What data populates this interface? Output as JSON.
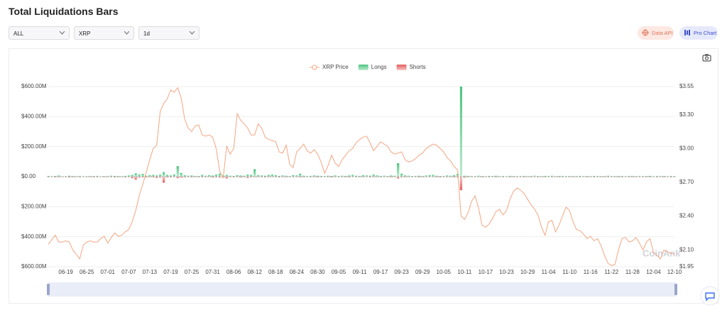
{
  "header": {
    "title": "Total Liquidations Bars"
  },
  "controls": {
    "exchange": "ALL",
    "coin": "XRP",
    "interval": "1d",
    "data_api": "Data API",
    "pro_chart": "Pro Chart"
  },
  "watermark": "CoinAnk",
  "chart_data": {
    "type": "bar",
    "categories": [
      null,
      null,
      null,
      null,
      null,
      "06-19",
      null,
      null,
      null,
      null,
      null,
      "06-25",
      null,
      null,
      null,
      null,
      null,
      "07-01",
      null,
      null,
      null,
      null,
      null,
      "07-07",
      null,
      null,
      null,
      null,
      null,
      "07-13",
      null,
      null,
      null,
      null,
      null,
      "07-19",
      null,
      null,
      null,
      null,
      null,
      "07-25",
      null,
      null,
      null,
      null,
      null,
      "07-31",
      null,
      null,
      null,
      null,
      null,
      "08-06",
      null,
      null,
      null,
      null,
      null,
      "08-12",
      null,
      null,
      null,
      null,
      null,
      "08-18",
      null,
      null,
      null,
      null,
      null,
      "08-24",
      null,
      null,
      null,
      null,
      null,
      "08-30",
      null,
      null,
      null,
      null,
      null,
      "09-05",
      null,
      null,
      null,
      null,
      null,
      "09-11",
      null,
      null,
      null,
      null,
      null,
      "09-17",
      null,
      null,
      null,
      null,
      null,
      "09-23",
      null,
      null,
      null,
      null,
      null,
      "09-29",
      null,
      null,
      null,
      null,
      null,
      "10-05",
      null,
      null,
      null,
      null,
      null,
      "10-11",
      null,
      null,
      null,
      null,
      null,
      "10-17",
      null,
      null,
      null,
      null,
      null,
      "10-23",
      null,
      null,
      null,
      null,
      null,
      "10-29",
      null,
      null,
      null,
      null,
      null,
      "11-04",
      null,
      null,
      null,
      null,
      null,
      "11-10",
      null,
      null,
      null,
      null,
      null,
      "11-16",
      null,
      null,
      null,
      null,
      null,
      "11-22",
      null,
      null,
      null,
      null,
      null,
      "11-28",
      null,
      null,
      null,
      null,
      null,
      "12-04",
      null,
      null,
      null,
      null,
      null,
      "12-10"
    ],
    "series": [
      {
        "name": "XRP Price",
        "type": "line",
        "axis": "y2",
        "color": "#f4a582",
        "values": [
          2.15,
          2.19,
          2.23,
          2.17,
          2.17,
          2.18,
          2.17,
          2.1,
          2.06,
          2.02,
          2.14,
          2.17,
          2.18,
          2.17,
          2.17,
          2.2,
          2.22,
          2.16,
          2.21,
          2.25,
          2.22,
          2.23,
          2.26,
          2.28,
          2.35,
          2.45,
          2.58,
          2.68,
          2.79,
          2.9,
          3.0,
          3.03,
          3.33,
          3.4,
          3.44,
          3.52,
          3.5,
          3.54,
          3.45,
          3.26,
          3.18,
          3.15,
          3.2,
          3.21,
          3.12,
          3.11,
          3.12,
          3.1,
          3.0,
          2.8,
          2.74,
          3.02,
          2.95,
          3.0,
          3.31,
          3.25,
          3.22,
          3.18,
          3.12,
          3.12,
          3.22,
          3.18,
          3.1,
          3.08,
          3.07,
          3.06,
          2.97,
          2.96,
          3.03,
          2.86,
          2.83,
          2.97,
          3.0,
          3.04,
          2.98,
          2.96,
          2.99,
          2.95,
          2.88,
          2.78,
          2.85,
          2.94,
          2.87,
          2.84,
          2.9,
          2.94,
          2.98,
          3.0,
          3.05,
          3.08,
          3.1,
          3.11,
          3.05,
          2.98,
          3.02,
          3.06,
          3.04,
          3.02,
          2.97,
          2.95,
          2.96,
          2.97,
          2.9,
          2.88,
          2.89,
          2.91,
          2.94,
          2.96,
          3.0,
          3.02,
          3.04,
          3.03,
          3.0,
          2.97,
          2.92,
          2.89,
          2.84,
          2.81,
          2.4,
          2.37,
          2.43,
          2.53,
          2.58,
          2.47,
          2.32,
          2.3,
          2.33,
          2.38,
          2.44,
          2.46,
          2.41,
          2.45,
          2.55,
          2.62,
          2.65,
          2.63,
          2.6,
          2.55,
          2.5,
          2.46,
          2.41,
          2.3,
          2.23,
          2.35,
          2.36,
          2.26,
          2.32,
          2.4,
          2.48,
          2.45,
          2.35,
          2.28,
          2.27,
          2.24,
          2.2,
          2.22,
          2.18,
          2.2,
          2.14,
          2.05,
          1.98,
          1.96,
          1.97,
          2.1,
          2.2,
          2.21,
          2.17,
          2.18,
          2.21,
          2.16,
          2.1,
          2.17,
          2.2,
          2.08,
          2.05,
          2.02,
          2.1,
          2.08,
          2.07,
          2.06
        ]
      },
      {
        "name": "Longs",
        "type": "bar",
        "color": "#4cc47f",
        "values": [
          5,
          3,
          4,
          8,
          2,
          3,
          6,
          4,
          3,
          5,
          3,
          2,
          4,
          3,
          5,
          2,
          3,
          4,
          6,
          5,
          4,
          3,
          5,
          8,
          12,
          22,
          15,
          18,
          6,
          10,
          12,
          8,
          14,
          30,
          12,
          8,
          15,
          70,
          25,
          10,
          6,
          8,
          5,
          4,
          12,
          6,
          10,
          8,
          14,
          20,
          8,
          12,
          6,
          5,
          10,
          8,
          6,
          14,
          12,
          50,
          10,
          8,
          6,
          12,
          14,
          10,
          5,
          8,
          6,
          4,
          10,
          8,
          20,
          6,
          4,
          5,
          8,
          6,
          5,
          4,
          6,
          5,
          8,
          4,
          6,
          5,
          8,
          12,
          6,
          5,
          10,
          8,
          6,
          14,
          8,
          5,
          6,
          4,
          8,
          6,
          90,
          20,
          8,
          6,
          4,
          5,
          6,
          4,
          8,
          10,
          12,
          6,
          4,
          5,
          8,
          6,
          10,
          18,
          600,
          6,
          5,
          4,
          3,
          6,
          4,
          3,
          5,
          4,
          6,
          3,
          4,
          3,
          5,
          4,
          3,
          4,
          5,
          3,
          4,
          6,
          4,
          3,
          5,
          4,
          6,
          3,
          4,
          5,
          3,
          4,
          3,
          4,
          5,
          3,
          4,
          3,
          5,
          4,
          3,
          4,
          6,
          4,
          3,
          5,
          4,
          3,
          4,
          5,
          3,
          4,
          3,
          4,
          5,
          3,
          4,
          3,
          4,
          3,
          5,
          4
        ]
      },
      {
        "name": "Shorts",
        "type": "bar",
        "color": "#e35d5d",
        "values": [
          -3,
          -2,
          -4,
          -3,
          -2,
          -3,
          -5,
          -3,
          -2,
          -3,
          -2,
          -3,
          -2,
          -4,
          -3,
          -2,
          -3,
          -2,
          -3,
          -4,
          -3,
          -2,
          -4,
          -3,
          -10,
          -20,
          -6,
          -5,
          -4,
          -3,
          -5,
          -8,
          -6,
          -40,
          -5,
          -4,
          -3,
          -10,
          -6,
          -4,
          -3,
          -4,
          -2,
          -3,
          -4,
          -3,
          -2,
          -5,
          -4,
          -6,
          -4,
          -12,
          -3,
          -4,
          -3,
          -5,
          -3,
          -8,
          -4,
          -3,
          -2,
          -3,
          -4,
          -3,
          -2,
          -3,
          -4,
          -2,
          -3,
          -2,
          -3,
          -2,
          -4,
          -3,
          -2,
          -3,
          -2,
          -4,
          -3,
          -2,
          -3,
          -4,
          -2,
          -3,
          -2,
          -3,
          -4,
          -2,
          -3,
          -2,
          -3,
          -2,
          -4,
          -3,
          -2,
          -3,
          -2,
          -3,
          -4,
          -2,
          -12,
          -4,
          -3,
          -2,
          -3,
          -2,
          -4,
          -3,
          -2,
          -3,
          -2,
          -3,
          -4,
          -2,
          -3,
          -2,
          -4,
          -5,
          -90,
          -6,
          -3,
          -2,
          -3,
          -2,
          -3,
          -2,
          -3,
          -2,
          -3,
          -2,
          -3,
          -2,
          -3,
          -2,
          -3,
          -2,
          -3,
          -2,
          -3,
          -2,
          -3,
          -2,
          -3,
          -2,
          -3,
          -2,
          -3,
          -2,
          -3,
          -2,
          -3,
          -2,
          -3,
          -2,
          -3,
          -2,
          -3,
          -2,
          -3,
          -2,
          -3,
          -2,
          -3,
          -2,
          -3,
          -2,
          -3,
          -2,
          -3,
          -2,
          -3,
          -2,
          -3,
          -2,
          -3,
          -2,
          -3,
          -2,
          -3,
          -2
        ]
      }
    ],
    "ylim": [
      -600,
      600
    ],
    "yticks": [
      {
        "value": 600,
        "label": "$600.00M"
      },
      {
        "value": 400,
        "label": "$400.00M"
      },
      {
        "value": 200,
        "label": "$200.00M"
      },
      {
        "value": 0,
        "label": "$0.00"
      },
      {
        "value": -200,
        "label": "$200.00M"
      },
      {
        "value": -400,
        "label": "$400.00M"
      },
      {
        "value": -600,
        "label": "$600.00M"
      }
    ],
    "y2lim": [
      1.95,
      3.55
    ],
    "y2ticks": [
      {
        "value": 3.55,
        "label": "$3.55"
      },
      {
        "value": 3.3,
        "label": "$3.30"
      },
      {
        "value": 3.0,
        "label": "$3.00"
      },
      {
        "value": 2.7,
        "label": "$2.70"
      },
      {
        "value": 2.4,
        "label": "$2.40"
      },
      {
        "value": 2.1,
        "label": "$2.10"
      },
      {
        "value": 1.95,
        "label": "$1.95"
      }
    ],
    "grid": true,
    "legend": "top"
  }
}
